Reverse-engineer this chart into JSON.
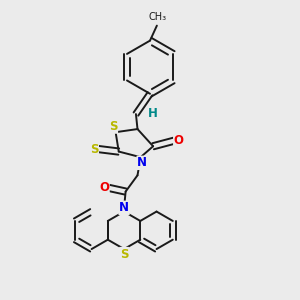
{
  "bg_color": "#ebebeb",
  "line_color": "#1a1a1a",
  "bond_width": 1.4,
  "atom_colors": {
    "S": "#b8b800",
    "N": "#0000ee",
    "O": "#ee0000",
    "H": "#008888",
    "C": "#1a1a1a"
  },
  "font_size": 8.5,
  "figsize": [
    3.0,
    3.0
  ],
  "dpi": 100
}
